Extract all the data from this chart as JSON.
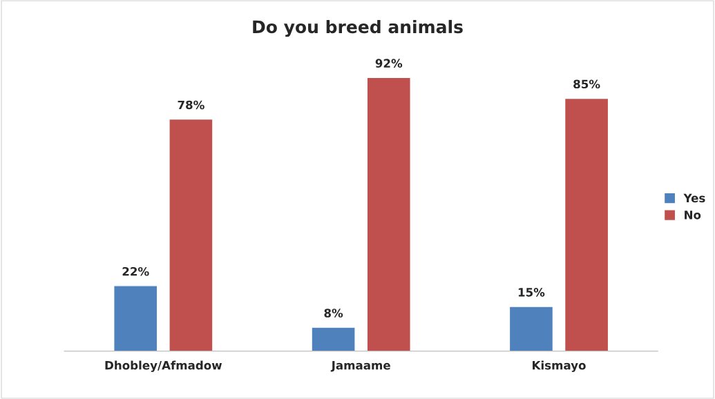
{
  "chart_data": {
    "type": "bar",
    "title": "Do you breed animals",
    "categories": [
      "Dhobley/Afmadow",
      "Jamaame",
      "Kismayo"
    ],
    "series": [
      {
        "name": "Yes",
        "color": "#4f81bd",
        "values": [
          22,
          8,
          15
        ],
        "value_labels": [
          "22%",
          "8%",
          "15%"
        ]
      },
      {
        "name": "No",
        "color": "#c0504d",
        "values": [
          78,
          92,
          85
        ],
        "value_labels": [
          "78%",
          "92%",
          "85%"
        ]
      }
    ],
    "legend": "right",
    "grid": false,
    "tick_labels": "x"
  }
}
